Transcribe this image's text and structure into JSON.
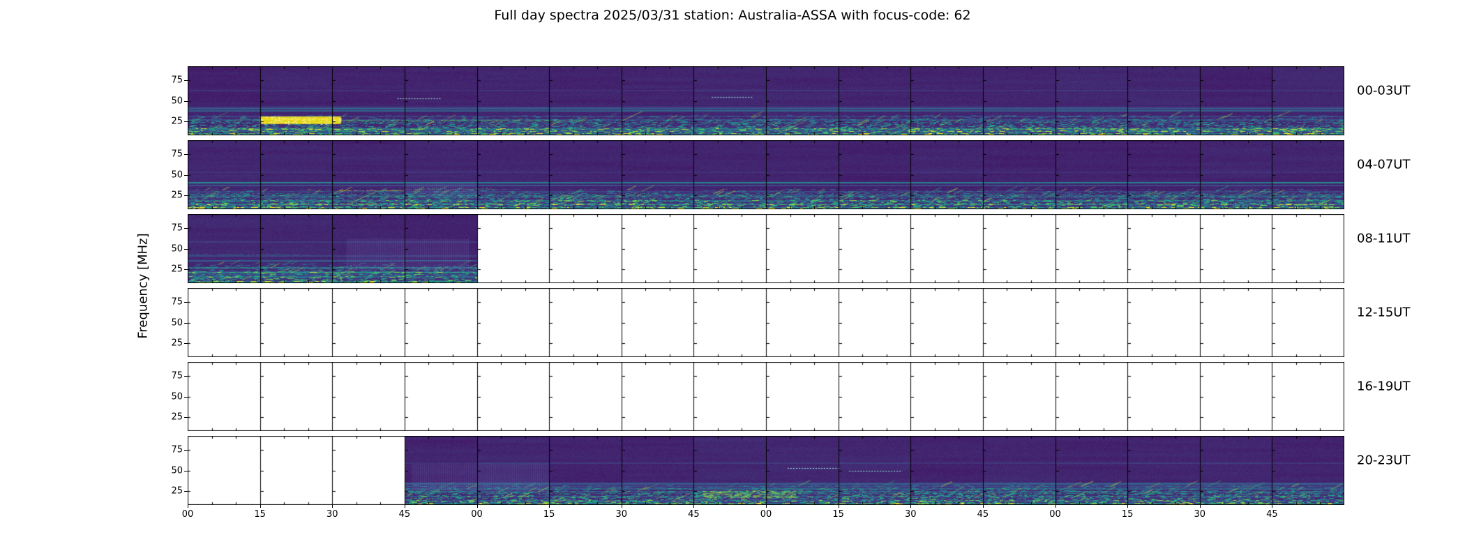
{
  "figure": {
    "title": "Full day spectra 2025/03/31 station: Australia-ASSA with focus-code: 62",
    "ylabel": "Frequency [MHz]"
  },
  "chart_data": {
    "type": "heatmap",
    "subtype": "radio-spectrogram-quicklook",
    "title": "Full day spectra 2025/03/31 station: Australia-ASSA with focus-code: 62",
    "date": "2025/03/31",
    "station": "Australia-ASSA",
    "focus_code": "62",
    "ylabel": "Frequency [MHz]",
    "colormap": "viridis",
    "panels_per_row": 16,
    "minutes_per_panel": 15,
    "freq_top_mhz": 91.7,
    "freq_bottom_mhz": 8.3,
    "y_tick_freqs_mhz": [
      75,
      50,
      25
    ],
    "y_tick_labels": [
      "75",
      "50",
      "25"
    ],
    "x_tick_labels": [
      "00",
      "15",
      "30",
      "45",
      "00",
      "15",
      "30",
      "45",
      "00",
      "15",
      "30",
      "45",
      "00",
      "15",
      "30",
      "45"
    ],
    "legend": "none",
    "grid": "off",
    "colors": {
      "background": "#ffffff",
      "spectrogram_dark": "#440154",
      "low_freq_activity": "#35b779",
      "saturated_band": "#f2e51e",
      "dotted_line": "#96f0dc",
      "axis": "#000000",
      "empty_panel": "#ffffff"
    },
    "rows": [
      {
        "label": "00-03UT",
        "filled": [
          [
            0,
            16
          ]
        ],
        "features": [
          {
            "type": "h_line",
            "x": [
              0,
              16
            ],
            "f": 24,
            "level": 0.5
          },
          {
            "type": "bright_band",
            "x": [
              1.0,
              2.12
            ],
            "f": [
              22,
              31
            ]
          },
          {
            "type": "h_line",
            "x": [
              2.12,
              5.5
            ],
            "f": 26,
            "level": 0.8
          },
          {
            "type": "dotted_line",
            "x": [
              2.9,
              3.5
            ],
            "f": 53
          },
          {
            "type": "dotted_line",
            "x": [
              7.25,
              7.8
            ],
            "f": 55
          }
        ]
      },
      {
        "label": "04-07UT",
        "filled": [
          [
            0,
            16
          ]
        ],
        "features": [
          {
            "type": "h_line",
            "x": [
              0,
              16
            ],
            "f": 27,
            "level": 0.55
          },
          {
            "type": "h_line",
            "x": [
              0,
              16
            ],
            "f": 23,
            "level": 0.5
          },
          {
            "type": "h_line",
            "x": [
              2.1,
              3.0
            ],
            "f": 31,
            "level": 0.95
          },
          {
            "type": "h_line",
            "x": [
              3.0,
              4.3
            ],
            "f": 33,
            "level": 0.7
          },
          {
            "type": "stripe_block",
            "x": [
              3.0,
              4.0
            ],
            "f": [
              24,
              40
            ]
          }
        ]
      },
      {
        "label": "08-11UT",
        "filled": [
          [
            0,
            4
          ]
        ],
        "features": [
          {
            "type": "h_line",
            "x": [
              0,
              4
            ],
            "f": 27,
            "level": 0.55
          },
          {
            "type": "h_line",
            "x": [
              0,
              1.7
            ],
            "f": 43,
            "level": 0.45
          },
          {
            "type": "stripe_block",
            "x": [
              2.2,
              3.9
            ],
            "f": [
              24,
              62
            ]
          }
        ]
      },
      {
        "label": "12-15UT",
        "filled": [],
        "features": []
      },
      {
        "label": "16-19UT",
        "filled": [],
        "features": []
      },
      {
        "label": "20-23UT",
        "filled": [
          [
            3,
            16
          ]
        ],
        "features": [
          {
            "type": "h_line",
            "x": [
              3,
              16
            ],
            "f": 23,
            "level": 0.6
          },
          {
            "type": "stripe_block",
            "x": [
              3.1,
              5.0
            ],
            "f": [
              25,
              58
            ]
          },
          {
            "type": "green_blob",
            "x": [
              7.1,
              8.4
            ],
            "f": [
              17,
              26
            ]
          },
          {
            "type": "dotted_line",
            "x": [
              8.3,
              9.0
            ],
            "f": 53
          },
          {
            "type": "dotted_line",
            "x": [
              9.15,
              9.85
            ],
            "f": 50
          }
        ]
      }
    ]
  }
}
